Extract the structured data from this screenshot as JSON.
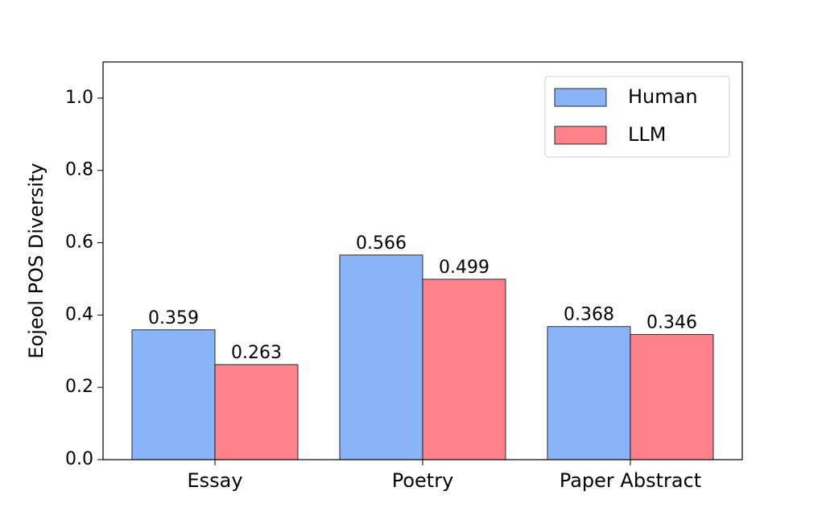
{
  "chart_data": {
    "type": "bar",
    "categories": [
      "Essay",
      "Poetry",
      "Paper Abstract"
    ],
    "series": [
      {
        "name": "Human",
        "color": "#8ab4f8",
        "values": [
          0.359,
          0.566,
          0.368
        ]
      },
      {
        "name": "LLM",
        "color": "#ff828b",
        "values": [
          0.263,
          0.499,
          0.346
        ]
      }
    ],
    "y_label": "Eojeol POS Diversity",
    "ylim": [
      0,
      1.1
    ],
    "yticks": [
      {
        "value": 0,
        "label": "0.0"
      },
      {
        "value": 0.2,
        "label": "0.2"
      },
      {
        "value": 0.4,
        "label": "0.4"
      },
      {
        "value": 0.6,
        "label": "0.6"
      },
      {
        "value": 0.8,
        "label": "0.8"
      },
      {
        "value": 1.0,
        "label": "1.0"
      }
    ],
    "legend": "upper right",
    "grid": false
  }
}
